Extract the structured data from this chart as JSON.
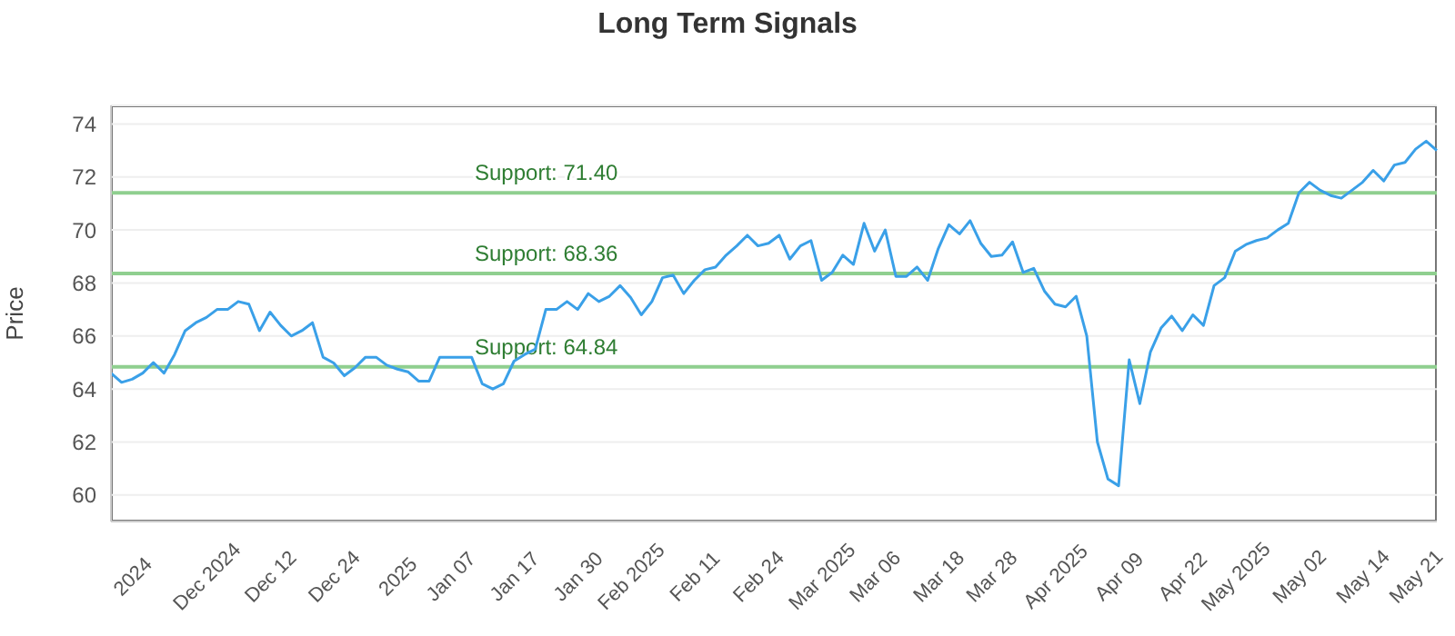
{
  "chart_data": {
    "type": "line",
    "title": "Long Term Signals",
    "ylabel": "Price",
    "categories": [
      null,
      null,
      "2024",
      null,
      null,
      null,
      null,
      null,
      null,
      "Dec 2024",
      null,
      null,
      null,
      null,
      null,
      "Dec 12",
      null,
      null,
      null,
      null,
      null,
      "Dec 24",
      null,
      null,
      null,
      null,
      null,
      "2025",
      null,
      null,
      null,
      null,
      "Jan 07",
      null,
      null,
      null,
      null,
      null,
      "Jan 17",
      null,
      null,
      null,
      null,
      null,
      "Jan 30",
      null,
      null,
      null,
      null,
      "Feb 2025",
      null,
      null,
      null,
      null,
      null,
      "Feb 11",
      null,
      null,
      null,
      null,
      null,
      "Feb 24",
      null,
      null,
      null,
      null,
      null,
      "Mar 2025",
      null,
      null,
      null,
      null,
      "Mar 06",
      null,
      null,
      null,
      null,
      null,
      "Mar 18",
      null,
      null,
      null,
      null,
      "Mar 28",
      null,
      null,
      null,
      null,
      null,
      "Apr 2025",
      null,
      null,
      null,
      null,
      null,
      "Apr 09",
      null,
      null,
      null,
      null,
      null,
      "Apr 22",
      null,
      null,
      null,
      null,
      "May 2025",
      null,
      null,
      null,
      null,
      null,
      "May 02",
      null,
      null,
      null,
      null,
      null,
      "May 14",
      null,
      null,
      null,
      null,
      "May 21",
      null,
      null
    ],
    "series": [
      {
        "color": "#3aa0e8",
        "values": [
          64.6,
          64.25,
          64.37,
          64.6,
          65.0,
          64.6,
          65.3,
          66.2,
          66.5,
          66.7,
          67.0,
          67.0,
          67.3,
          67.2,
          66.2,
          66.9,
          66.4,
          66.0,
          66.2,
          66.5,
          65.2,
          64.98,
          64.5,
          64.8,
          65.2,
          65.2,
          64.9,
          64.75,
          64.65,
          64.3,
          64.3,
          65.2,
          65.2,
          65.2,
          65.2,
          64.2,
          64.0,
          64.2,
          65.05,
          65.3,
          65.5,
          67.0,
          67.0,
          67.3,
          67.0,
          67.6,
          67.3,
          67.5,
          67.9,
          67.45,
          66.8,
          67.3,
          68.2,
          68.3,
          67.6,
          68.1,
          68.5,
          68.6,
          69.05,
          69.4,
          69.8,
          69.4,
          69.5,
          69.8,
          68.9,
          69.4,
          69.6,
          68.1,
          68.4,
          69.05,
          68.7,
          70.25,
          69.2,
          70.0,
          68.25,
          68.25,
          68.6,
          68.1,
          69.3,
          70.2,
          69.85,
          70.35,
          69.5,
          69.0,
          69.05,
          69.55,
          68.4,
          68.55,
          67.7,
          67.2,
          67.1,
          67.5,
          66.0,
          62.0,
          60.6,
          60.35,
          65.1,
          63.45,
          65.4,
          66.3,
          66.75,
          66.2,
          66.8,
          66.4,
          67.9,
          68.2,
          69.2,
          69.45,
          69.6,
          69.7,
          70.0,
          70.25,
          71.4,
          71.8,
          71.5,
          71.3,
          71.2,
          71.5,
          71.8,
          72.25,
          71.85,
          72.45,
          72.55,
          73.05,
          73.35,
          73.0
        ]
      }
    ],
    "ylim": [
      59,
      74.7
    ],
    "yticks": [
      60,
      62,
      64,
      66,
      68,
      70,
      72,
      74
    ],
    "grid": "y",
    "marker": "none",
    "line_style": "solid",
    "legend": false,
    "ref_lines": [
      {
        "axis": "y",
        "value": 71.4,
        "label": "Support: 71.40",
        "color": "#8fcf8f"
      },
      {
        "axis": "y",
        "value": 68.36,
        "label": "Support: 68.36",
        "color": "#8fcf8f"
      },
      {
        "axis": "y",
        "value": 64.84,
        "label": "Support: 64.84",
        "color": "#8fcf8f"
      }
    ]
  }
}
